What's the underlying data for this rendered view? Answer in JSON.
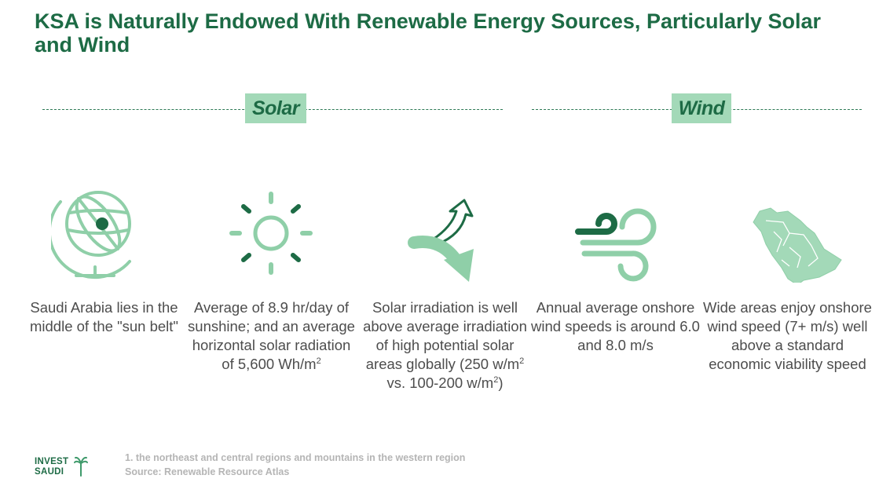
{
  "title": "KSA is Naturally Endowed With Renewable Energy Sources, Particularly Solar and Wind",
  "sections": {
    "solar": "Solar",
    "wind": "Wind"
  },
  "items": [
    {
      "icon": "globe-icon",
      "text": "Saudi Arabia lies in the middle of the \"sun belt\""
    },
    {
      "icon": "sun-icon",
      "text_before": "Average of 8.9 hr/day of sunshine; and an average horizontal solar radiation of 5,600 Wh/m",
      "sup": "2"
    },
    {
      "icon": "irradiation-arrows-icon",
      "text_before": "Solar irradiation is well above average irradiation of high potential solar areas globally (250 w/m",
      "sup1": "2",
      "text_mid": " vs. 100-200 w/m",
      "sup2": "2",
      "text_after": ")"
    },
    {
      "icon": "wind-icon",
      "text": "Annual average onshore wind speeds is around 6.0 and 8.0 m/s"
    },
    {
      "icon": "saudi-map-icon",
      "text": "Wide areas enjoy onshore wind speed (7+ m/s) well above a standard economic viability speed"
    }
  ],
  "footnote": {
    "line1": "1. the northeast and central regions and mountains in the western region",
    "line2": "Source: Renewable Resource Atlas"
  },
  "logo": {
    "line1": "INVEST",
    "line2": "SAUDI"
  },
  "colors": {
    "dark_green": "#1d6b45",
    "light_green": "#a3d9b8",
    "icon_green": "#8fcfa8"
  }
}
